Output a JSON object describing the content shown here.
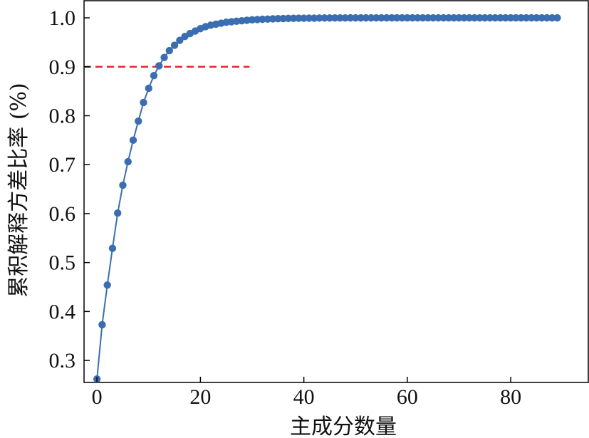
{
  "chart_data": {
    "type": "line",
    "title": "",
    "xlabel": "主成分数量",
    "ylabel": "累积解释方差比率 (%)",
    "xlim": [
      -2.5,
      95
    ],
    "ylim": [
      0.255,
      1.035
    ],
    "xticks": [
      0,
      20,
      40,
      60,
      80
    ],
    "xtick_labels": [
      "0",
      "20",
      "40",
      "60",
      "80"
    ],
    "yticks": [
      0.3,
      0.4,
      0.5,
      0.6,
      0.7,
      0.8,
      0.9,
      1.0
    ],
    "ytick_labels": [
      "0.3",
      "0.4",
      "0.5",
      "0.6",
      "0.7",
      "0.8",
      "0.9",
      "1.0"
    ],
    "grid": false,
    "legend": "none",
    "series": [
      {
        "color": "#3a6eb0",
        "marker": "circle",
        "x": [
          0,
          1,
          2,
          3,
          4,
          5,
          6,
          7,
          8,
          9,
          10,
          11,
          12,
          13,
          14,
          15,
          16,
          17,
          18,
          19,
          20,
          21,
          22,
          23,
          24,
          25,
          26,
          27,
          28,
          29,
          30,
          31,
          32,
          33,
          34,
          35,
          36,
          37,
          38,
          39,
          40,
          41,
          42,
          43,
          44,
          45,
          46,
          47,
          48,
          49,
          50,
          51,
          52,
          53,
          54,
          55,
          56,
          57,
          58,
          59,
          60,
          61,
          62,
          63,
          64,
          65,
          66,
          67,
          68,
          69,
          70,
          71,
          72,
          73,
          74,
          75,
          76,
          77,
          78,
          79,
          80,
          81,
          82,
          83,
          84,
          85,
          86,
          87,
          88,
          89
        ],
        "y": [
          0.262,
          0.373,
          0.454,
          0.529,
          0.601,
          0.658,
          0.706,
          0.75,
          0.789,
          0.827,
          0.856,
          0.882,
          0.902,
          0.919,
          0.933,
          0.944,
          0.954,
          0.962,
          0.968,
          0.973,
          0.978,
          0.982,
          0.985,
          0.987,
          0.989,
          0.991,
          0.992,
          0.993,
          0.994,
          0.995,
          0.996,
          0.9965,
          0.997,
          0.9975,
          0.998,
          0.9983,
          0.9986,
          0.9988,
          0.999,
          0.9992,
          0.9993,
          0.9994,
          0.9995,
          0.9996,
          0.9997,
          0.9997,
          0.9998,
          0.9998,
          0.9998,
          0.9999,
          0.9999,
          0.9999,
          0.9999,
          0.9999,
          1,
          1,
          1,
          1,
          1,
          1,
          1,
          1,
          1,
          1,
          1,
          1,
          1,
          1,
          1,
          1,
          1,
          1,
          1,
          1,
          1,
          1,
          1,
          1,
          1,
          1,
          1,
          1,
          1,
          1,
          1,
          1,
          1,
          1,
          1,
          1
        ]
      }
    ],
    "reference_line": {
      "y": 0.9,
      "x_range": [
        -2.5,
        29.5
      ],
      "style": "dashed",
      "color": "#e8262b"
    }
  }
}
